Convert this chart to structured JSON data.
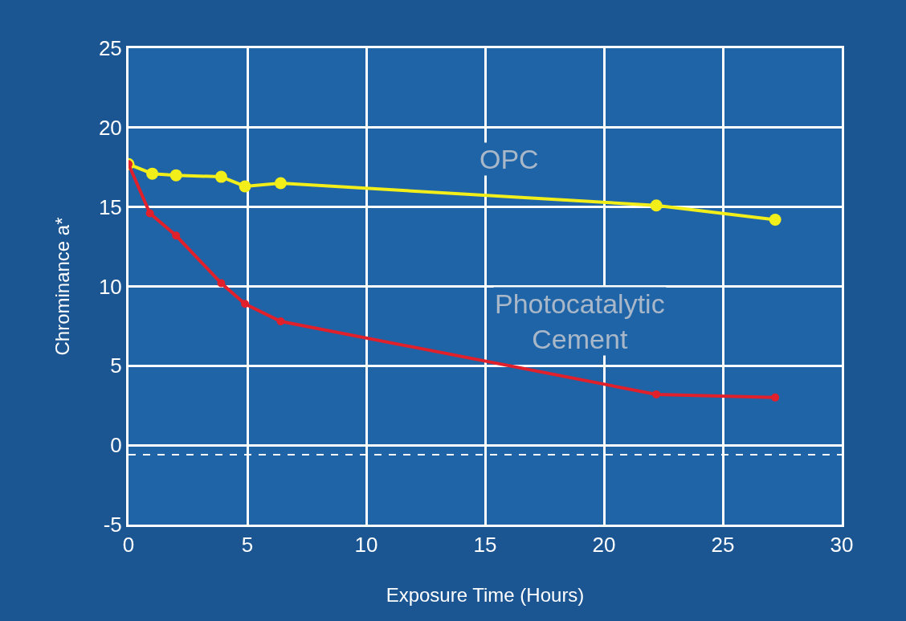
{
  "chart_data": {
    "type": "line",
    "xlabel": "Exposure Time (Hours)",
    "ylabel": "Chrominance a*",
    "xlim": [
      0,
      30
    ],
    "xticks": [
      0,
      5,
      10,
      15,
      20,
      25,
      30
    ],
    "ylim": [
      -5,
      25
    ],
    "yticks": [
      -5,
      0,
      5,
      10,
      15,
      20,
      25
    ],
    "grid": true,
    "legend": false,
    "marker": "circle",
    "line_style": "solid",
    "series": [
      {
        "name": "OPC",
        "color": "#f2ee1a",
        "x": [
          0,
          1.0,
          2.0,
          3.9,
          4.9,
          6.4,
          22.2,
          27.2
        ],
        "values": [
          17.7,
          17.1,
          17.0,
          16.9,
          16.3,
          16.5,
          15.1,
          14.2
        ]
      },
      {
        "name": "Photocatalytic Cement",
        "color": "#e0202a",
        "x": [
          0,
          0.9,
          2.0,
          3.9,
          4.9,
          6.4,
          22.2,
          27.2
        ],
        "values": [
          17.7,
          14.6,
          13.2,
          10.2,
          8.9,
          7.8,
          3.2,
          3.0
        ]
      }
    ],
    "ref_lines": [
      {
        "axis": "y",
        "value": -0.6,
        "color": "#ffffff",
        "line_style": "dashed"
      }
    ]
  }
}
